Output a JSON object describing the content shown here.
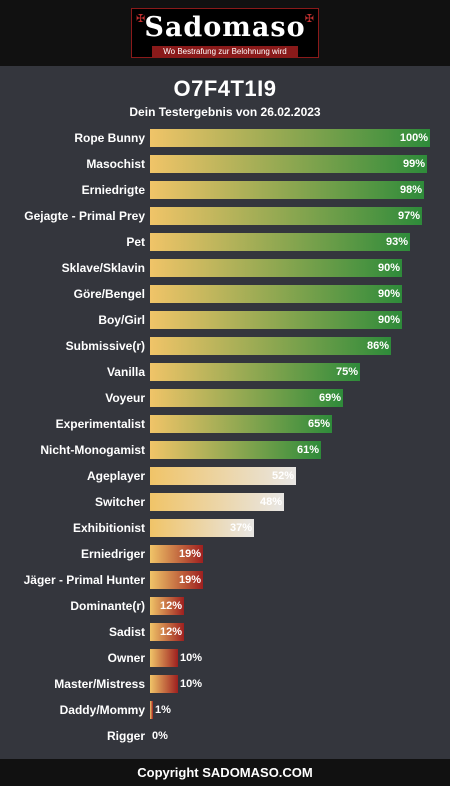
{
  "logo": {
    "word": "Sadomaso",
    "tagline": "Wo Bestrafung zur Belohnung wird",
    "corner_icon": "cross-icon"
  },
  "header": {
    "title": "O7F4T1I9",
    "subtitle": "Dein Testergebnis von 26.02.2023"
  },
  "chart_data": {
    "type": "bar",
    "orientation": "horizontal",
    "xlim": [
      0,
      100
    ],
    "unit": "%",
    "categories": [
      "Rope Bunny",
      "Masochist",
      "Erniedrigte",
      "Gejagte - Primal Prey",
      "Pet",
      "Sklave/Sklavin",
      "Göre/Bengel",
      "Boy/Girl",
      "Submissive(r)",
      "Vanilla",
      "Voyeur",
      "Experimentalist",
      "Nicht-Monogamist",
      "Ageplayer",
      "Switcher",
      "Exhibitionist",
      "Erniedriger",
      "Jäger - Primal Hunter",
      "Dominante(r)",
      "Sadist",
      "Owner",
      "Master/Mistress",
      "Daddy/Mommy",
      "Rigger"
    ],
    "values": [
      100,
      99,
      98,
      97,
      93,
      90,
      90,
      90,
      86,
      75,
      69,
      65,
      61,
      52,
      48,
      37,
      19,
      19,
      12,
      12,
      10,
      10,
      1,
      0
    ],
    "labels": [
      "100%",
      "99%",
      "98%",
      "97%",
      "93%",
      "90%",
      "90%",
      "90%",
      "86%",
      "75%",
      "69%",
      "65%",
      "61%",
      "52%",
      "48%",
      "37%",
      "19%",
      "19%",
      "12%",
      "12%",
      "10%",
      "10%",
      "1%",
      "0%"
    ],
    "colors": {
      "bar_start": "#f0c468",
      "high_end": "#2e8b3a",
      "neutral_end": "#e8e6e4",
      "low_end": "#9e1f1f"
    }
  },
  "footer": {
    "copyright": "Copyright SADOMASO.COM"
  }
}
